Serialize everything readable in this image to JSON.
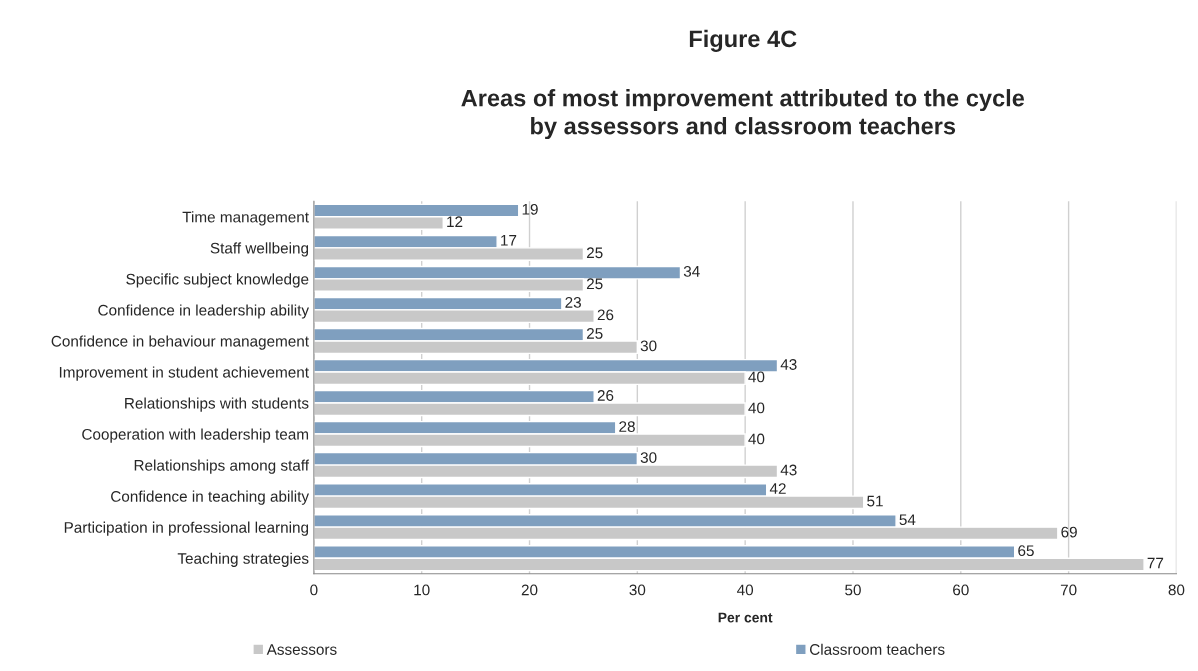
{
  "chart_data": {
    "type": "bar",
    "orientation": "horizontal",
    "title": "Figure 4C",
    "subtitle": "Areas of most improvement attributed to the cycle\nby assessors and classroom teachers",
    "xlabel": "Per cent",
    "categories": [
      "Time management",
      "Staff wellbeing",
      "Specific subject knowledge",
      "Confidence in leadership ability",
      "Confidence in behaviour management",
      "Improvement in student achievement",
      "Relationships with students",
      "Cooperation with leadership team",
      "Relationships among staff",
      "Confidence in teaching ability",
      "Participation in professional learning",
      "Teaching strategies"
    ],
    "series": [
      {
        "name": "Classroom teachers",
        "color": "#7f9fbf",
        "values": [
          19,
          17,
          34,
          23,
          25,
          43,
          26,
          28,
          30,
          42,
          54,
          65
        ]
      },
      {
        "name": "Assessors",
        "color": "#c8c8c8",
        "values": [
          12,
          25,
          25,
          26,
          30,
          40,
          40,
          40,
          43,
          51,
          69,
          77
        ]
      }
    ],
    "xlim": [
      0,
      80
    ],
    "xticks": [
      0,
      10,
      20,
      30,
      40,
      50,
      60,
      70,
      80
    ],
    "grid": "x",
    "data_labels": true,
    "legend": "bottom"
  }
}
